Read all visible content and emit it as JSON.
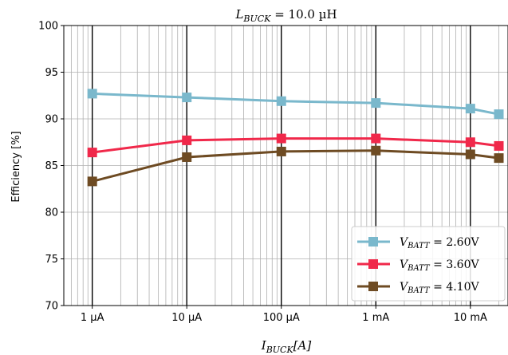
{
  "chart_data": {
    "type": "line",
    "title": "L_BUCK = 10.0 µH",
    "xlabel": "I_BUCK[A]",
    "ylabel": "Efficiency [%]",
    "x_scale": "log",
    "xlim": [
      5e-07,
      0.025
    ],
    "ylim": [
      70,
      100
    ],
    "x_ticks": [
      {
        "value": 1e-06,
        "label": "1 µA"
      },
      {
        "value": 1e-05,
        "label": "10 µA"
      },
      {
        "value": 0.0001,
        "label": "100 µA"
      },
      {
        "value": 0.001,
        "label": "1 mA"
      },
      {
        "value": 0.01,
        "label": "10 mA"
      }
    ],
    "y_ticks": [
      70,
      75,
      80,
      85,
      90,
      95,
      100
    ],
    "grid": true,
    "legend_position": "lower-right",
    "x": [
      1e-06,
      1e-05,
      0.0001,
      0.001,
      0.01,
      0.02
    ],
    "series": [
      {
        "name": "V_BATT = 2.60V",
        "color": "#7ab8cc",
        "values": [
          92.7,
          92.3,
          91.9,
          91.7,
          91.1,
          90.5
        ]
      },
      {
        "name": "V_BATT = 3.60V",
        "color": "#f0284a",
        "values": [
          86.4,
          87.7,
          87.9,
          87.9,
          87.5,
          87.1
        ]
      },
      {
        "name": "V_BATT = 4.10V",
        "color": "#6e4b23",
        "values": [
          83.3,
          85.9,
          86.5,
          86.6,
          86.2,
          85.8
        ]
      }
    ]
  }
}
